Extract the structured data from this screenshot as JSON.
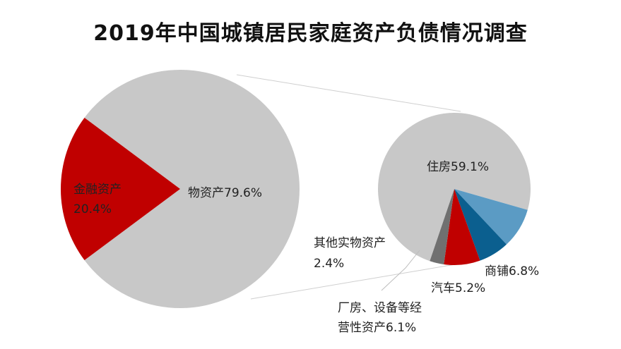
{
  "chart_data": [
    {
      "type": "pie",
      "title": "2019年中国城镇居民家庭资产负债情况调查",
      "slices": [
        {
          "name": "物资产",
          "value": 79.6,
          "label": "物资产79.6%",
          "color": "#c8c8c8"
        },
        {
          "name": "金融资产",
          "value": 20.4,
          "label_line1": "金融资产",
          "label_line2": "20.4%",
          "color": "#c00000"
        }
      ]
    },
    {
      "type": "pie",
      "title": "",
      "slices": [
        {
          "name": "住房",
          "value": 59.1,
          "label": "住房59.1%",
          "color": "#c8c8c8"
        },
        {
          "name": "商铺",
          "value": 6.8,
          "label": "商铺6.8%",
          "color": "#5b9bc4"
        },
        {
          "name": "汽车",
          "value": 5.2,
          "label": "汽车5.2%",
          "color": "#0b5f8f"
        },
        {
          "name": "厂房、设备等经营性资产",
          "value": 6.1,
          "label_line1": "厂房、设备等经",
          "label_line2": "营性资产6.1%",
          "color": "#c00000"
        },
        {
          "name": "其他实物资产",
          "value": 2.4,
          "label_line1": "其他实物资产",
          "label_line2": "2.4%",
          "color": "#707070"
        }
      ]
    }
  ]
}
